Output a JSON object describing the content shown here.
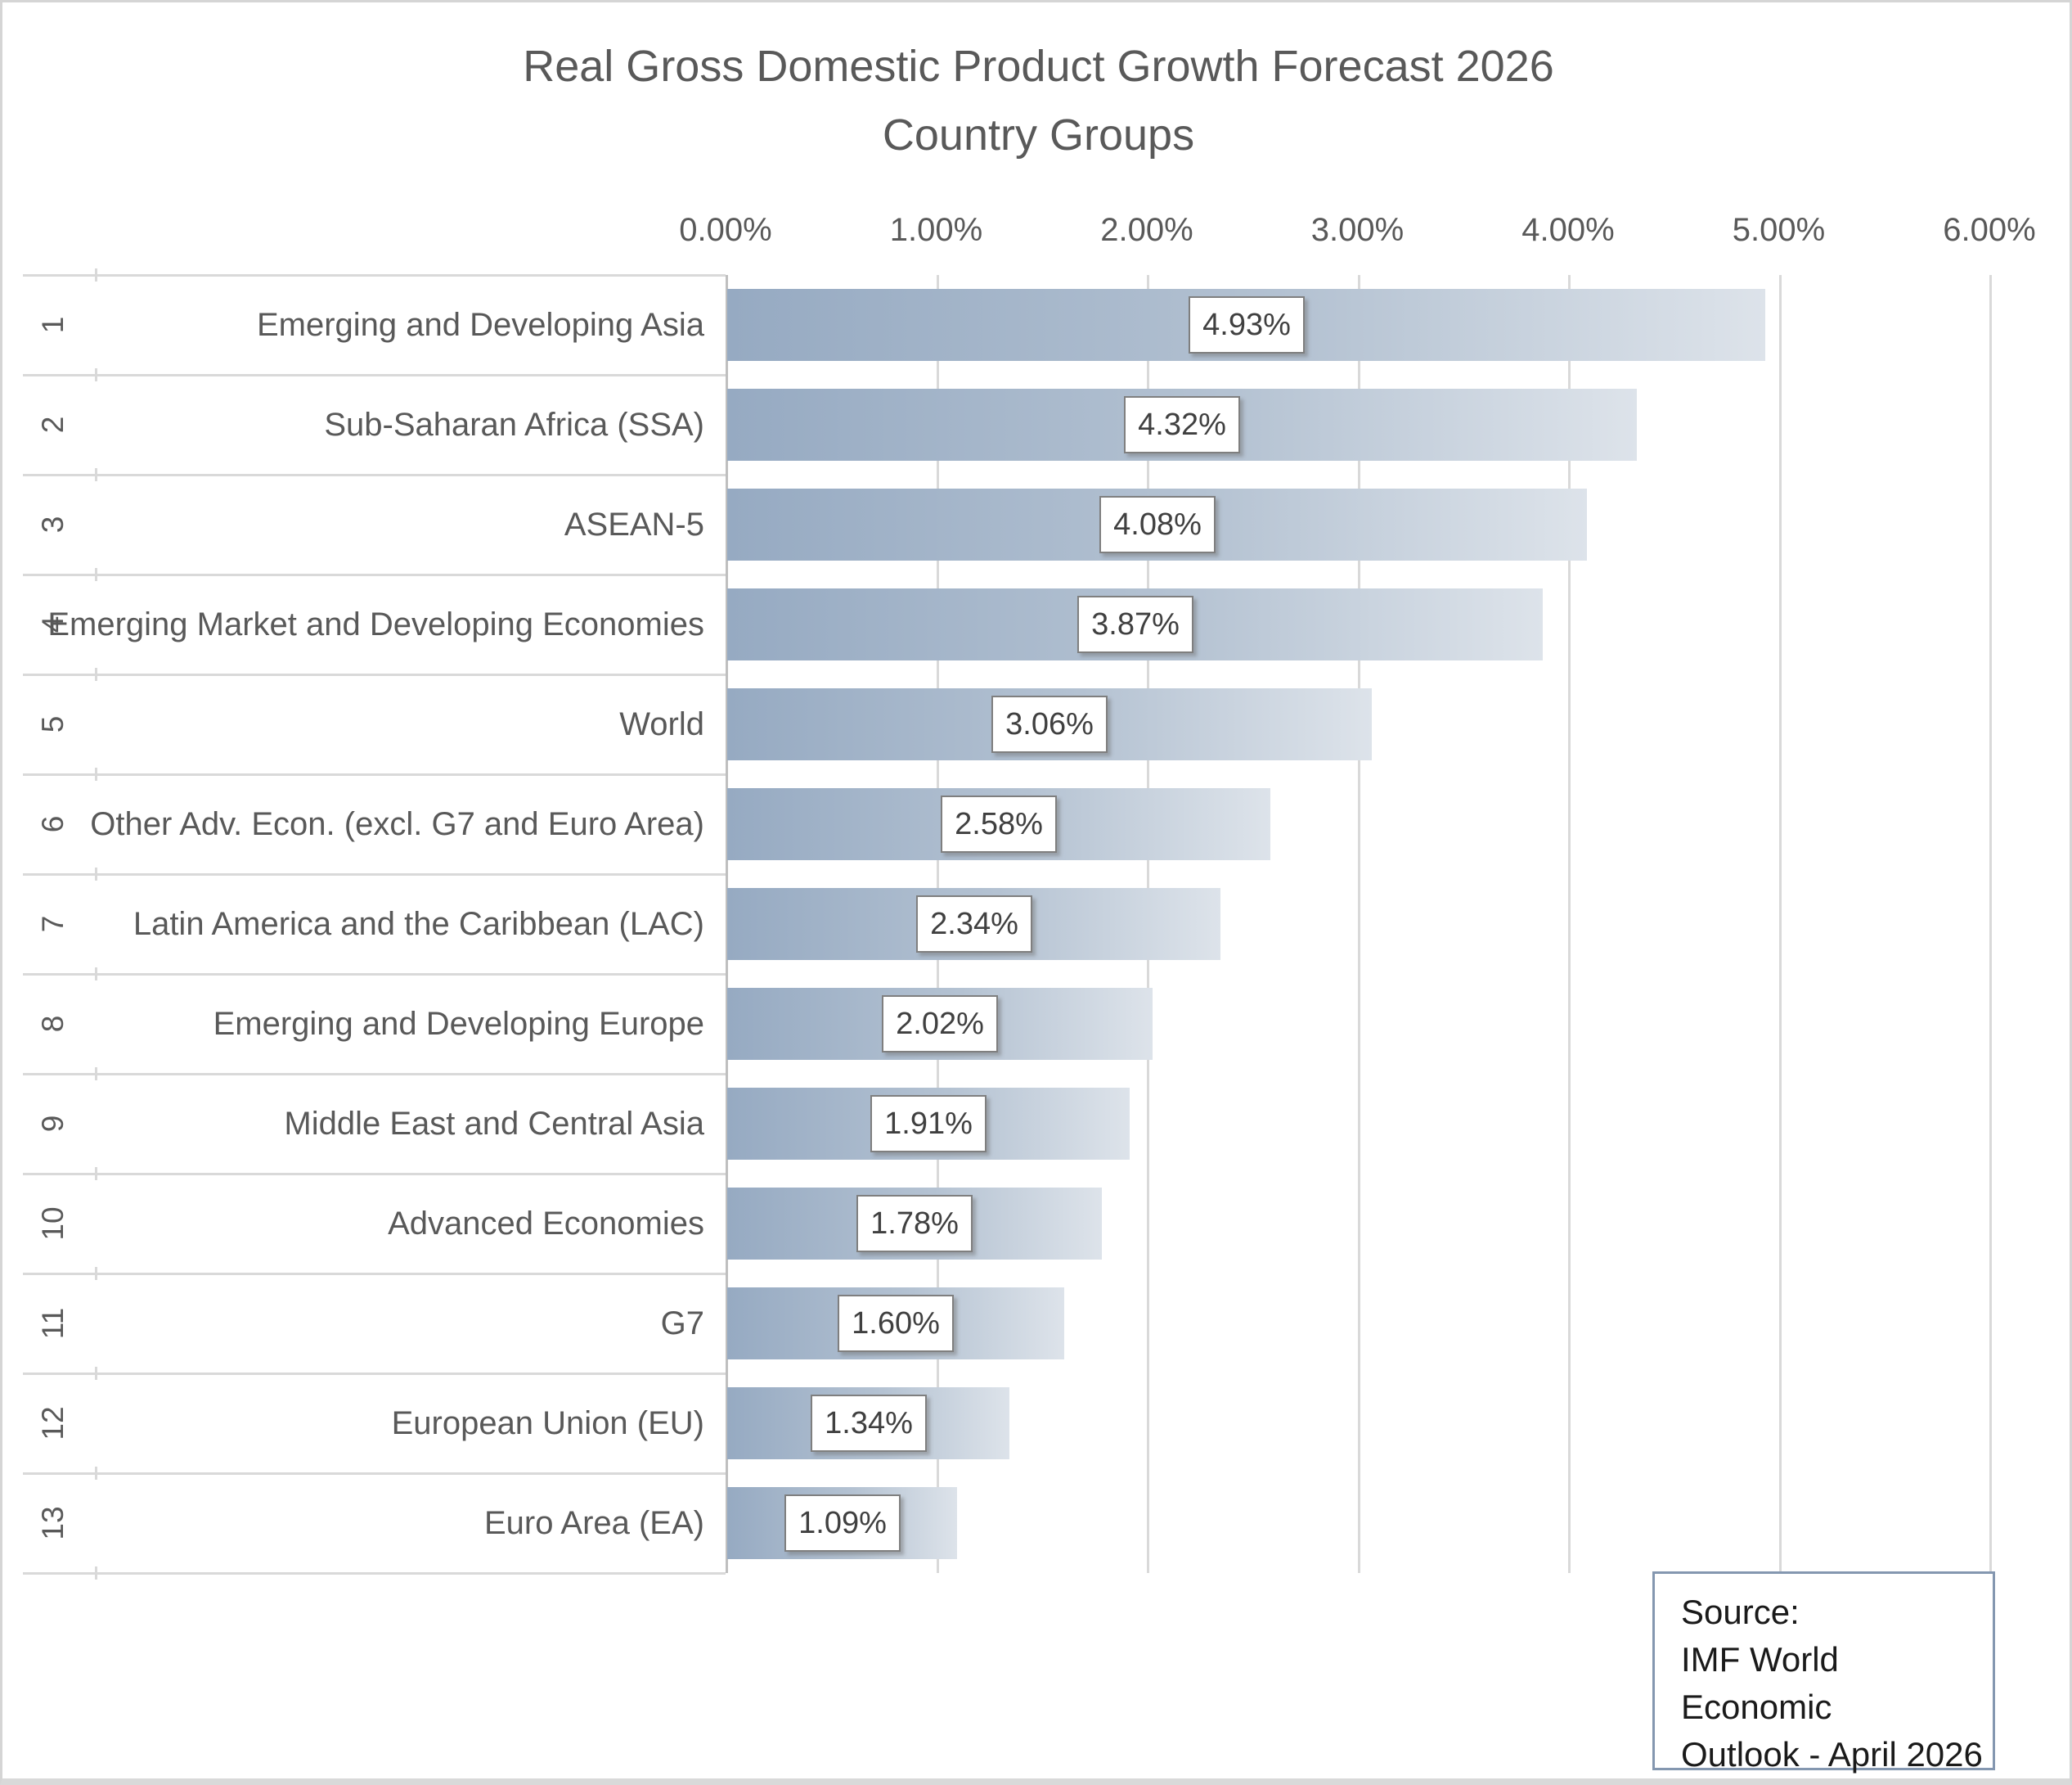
{
  "title": {
    "line1": "Real Gross Domestic Product Growth Forecast 2026",
    "line2": "Country Groups"
  },
  "axis": {
    "tick_labels": [
      "0.00%",
      "1.00%",
      "2.00%",
      "3.00%",
      "4.00%",
      "5.00%",
      "6.00%"
    ]
  },
  "chart_data": {
    "type": "bar",
    "orientation": "horizontal",
    "title": "Real Gross Domestic Product Growth Forecast 2026 - Country Groups",
    "ranks": [
      "1",
      "2",
      "3",
      "4",
      "5",
      "6",
      "7",
      "8",
      "9",
      "10",
      "11",
      "12",
      "13"
    ],
    "categories": [
      "Emerging and Developing Asia",
      "Sub-Saharan Africa (SSA)",
      "ASEAN-5",
      "Emerging Market and Developing Economies",
      "World",
      "Other Adv. Econ. (excl. G7 and Euro Area)",
      "Latin America and the Caribbean (LAC)",
      "Emerging and Developing Europe",
      "Middle East and Central Asia",
      "Advanced Economies",
      "G7",
      "European Union (EU)",
      "Euro Area (EA)"
    ],
    "values": [
      4.93,
      4.32,
      4.08,
      3.87,
      3.06,
      2.58,
      2.34,
      2.02,
      1.91,
      1.78,
      1.6,
      1.34,
      1.09
    ],
    "value_labels": [
      "4.93%",
      "4.32%",
      "4.08%",
      "3.87%",
      "3.06%",
      "2.58%",
      "2.34%",
      "2.02%",
      "1.91%",
      "1.78%",
      "1.60%",
      "1.34%",
      "1.09%"
    ],
    "xlabel": "",
    "ylabel": "",
    "xlim": [
      0,
      6
    ],
    "x_tick_step": 1,
    "grid": true,
    "legend": false,
    "data_label_position": "center"
  },
  "source": {
    "line1": "Source:",
    "line2": "IMF World Economic",
    "line3": "Outlook - April 2026"
  },
  "colors": {
    "bar_gradient_start": "#96aac2",
    "bar_gradient_end": "#dde3ea",
    "gridline": "#d9d9d9",
    "axis_line": "#bfbfbf",
    "text": "#595959",
    "value_text": "#404040",
    "value_box_border": "#7f7f7f",
    "source_box_border": "#8497b0"
  }
}
